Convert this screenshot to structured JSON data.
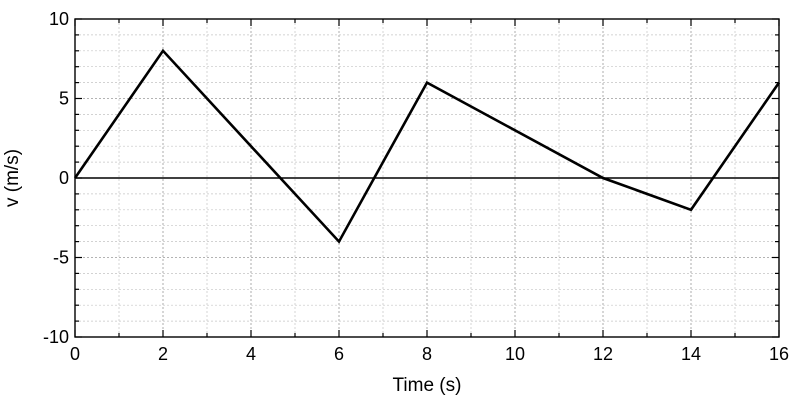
{
  "chart_data": {
    "type": "line",
    "title": "",
    "xlabel": "Time (s)",
    "ylabel": "v (m/s)",
    "xlim": [
      0,
      16
    ],
    "ylim": [
      -10,
      10
    ],
    "xticks": [
      0,
      2,
      4,
      6,
      8,
      10,
      12,
      14,
      16
    ],
    "yticks": [
      -10,
      -5,
      0,
      5,
      10
    ],
    "x_minor_step": 1,
    "y_minor_step": 1,
    "grid": true,
    "zero_line": true,
    "series": [
      {
        "color": "#000000",
        "x": [
          0,
          2,
          6,
          8,
          12,
          14,
          16
        ],
        "y": [
          0,
          8,
          -4,
          6,
          0,
          -2,
          6
        ]
      }
    ]
  }
}
